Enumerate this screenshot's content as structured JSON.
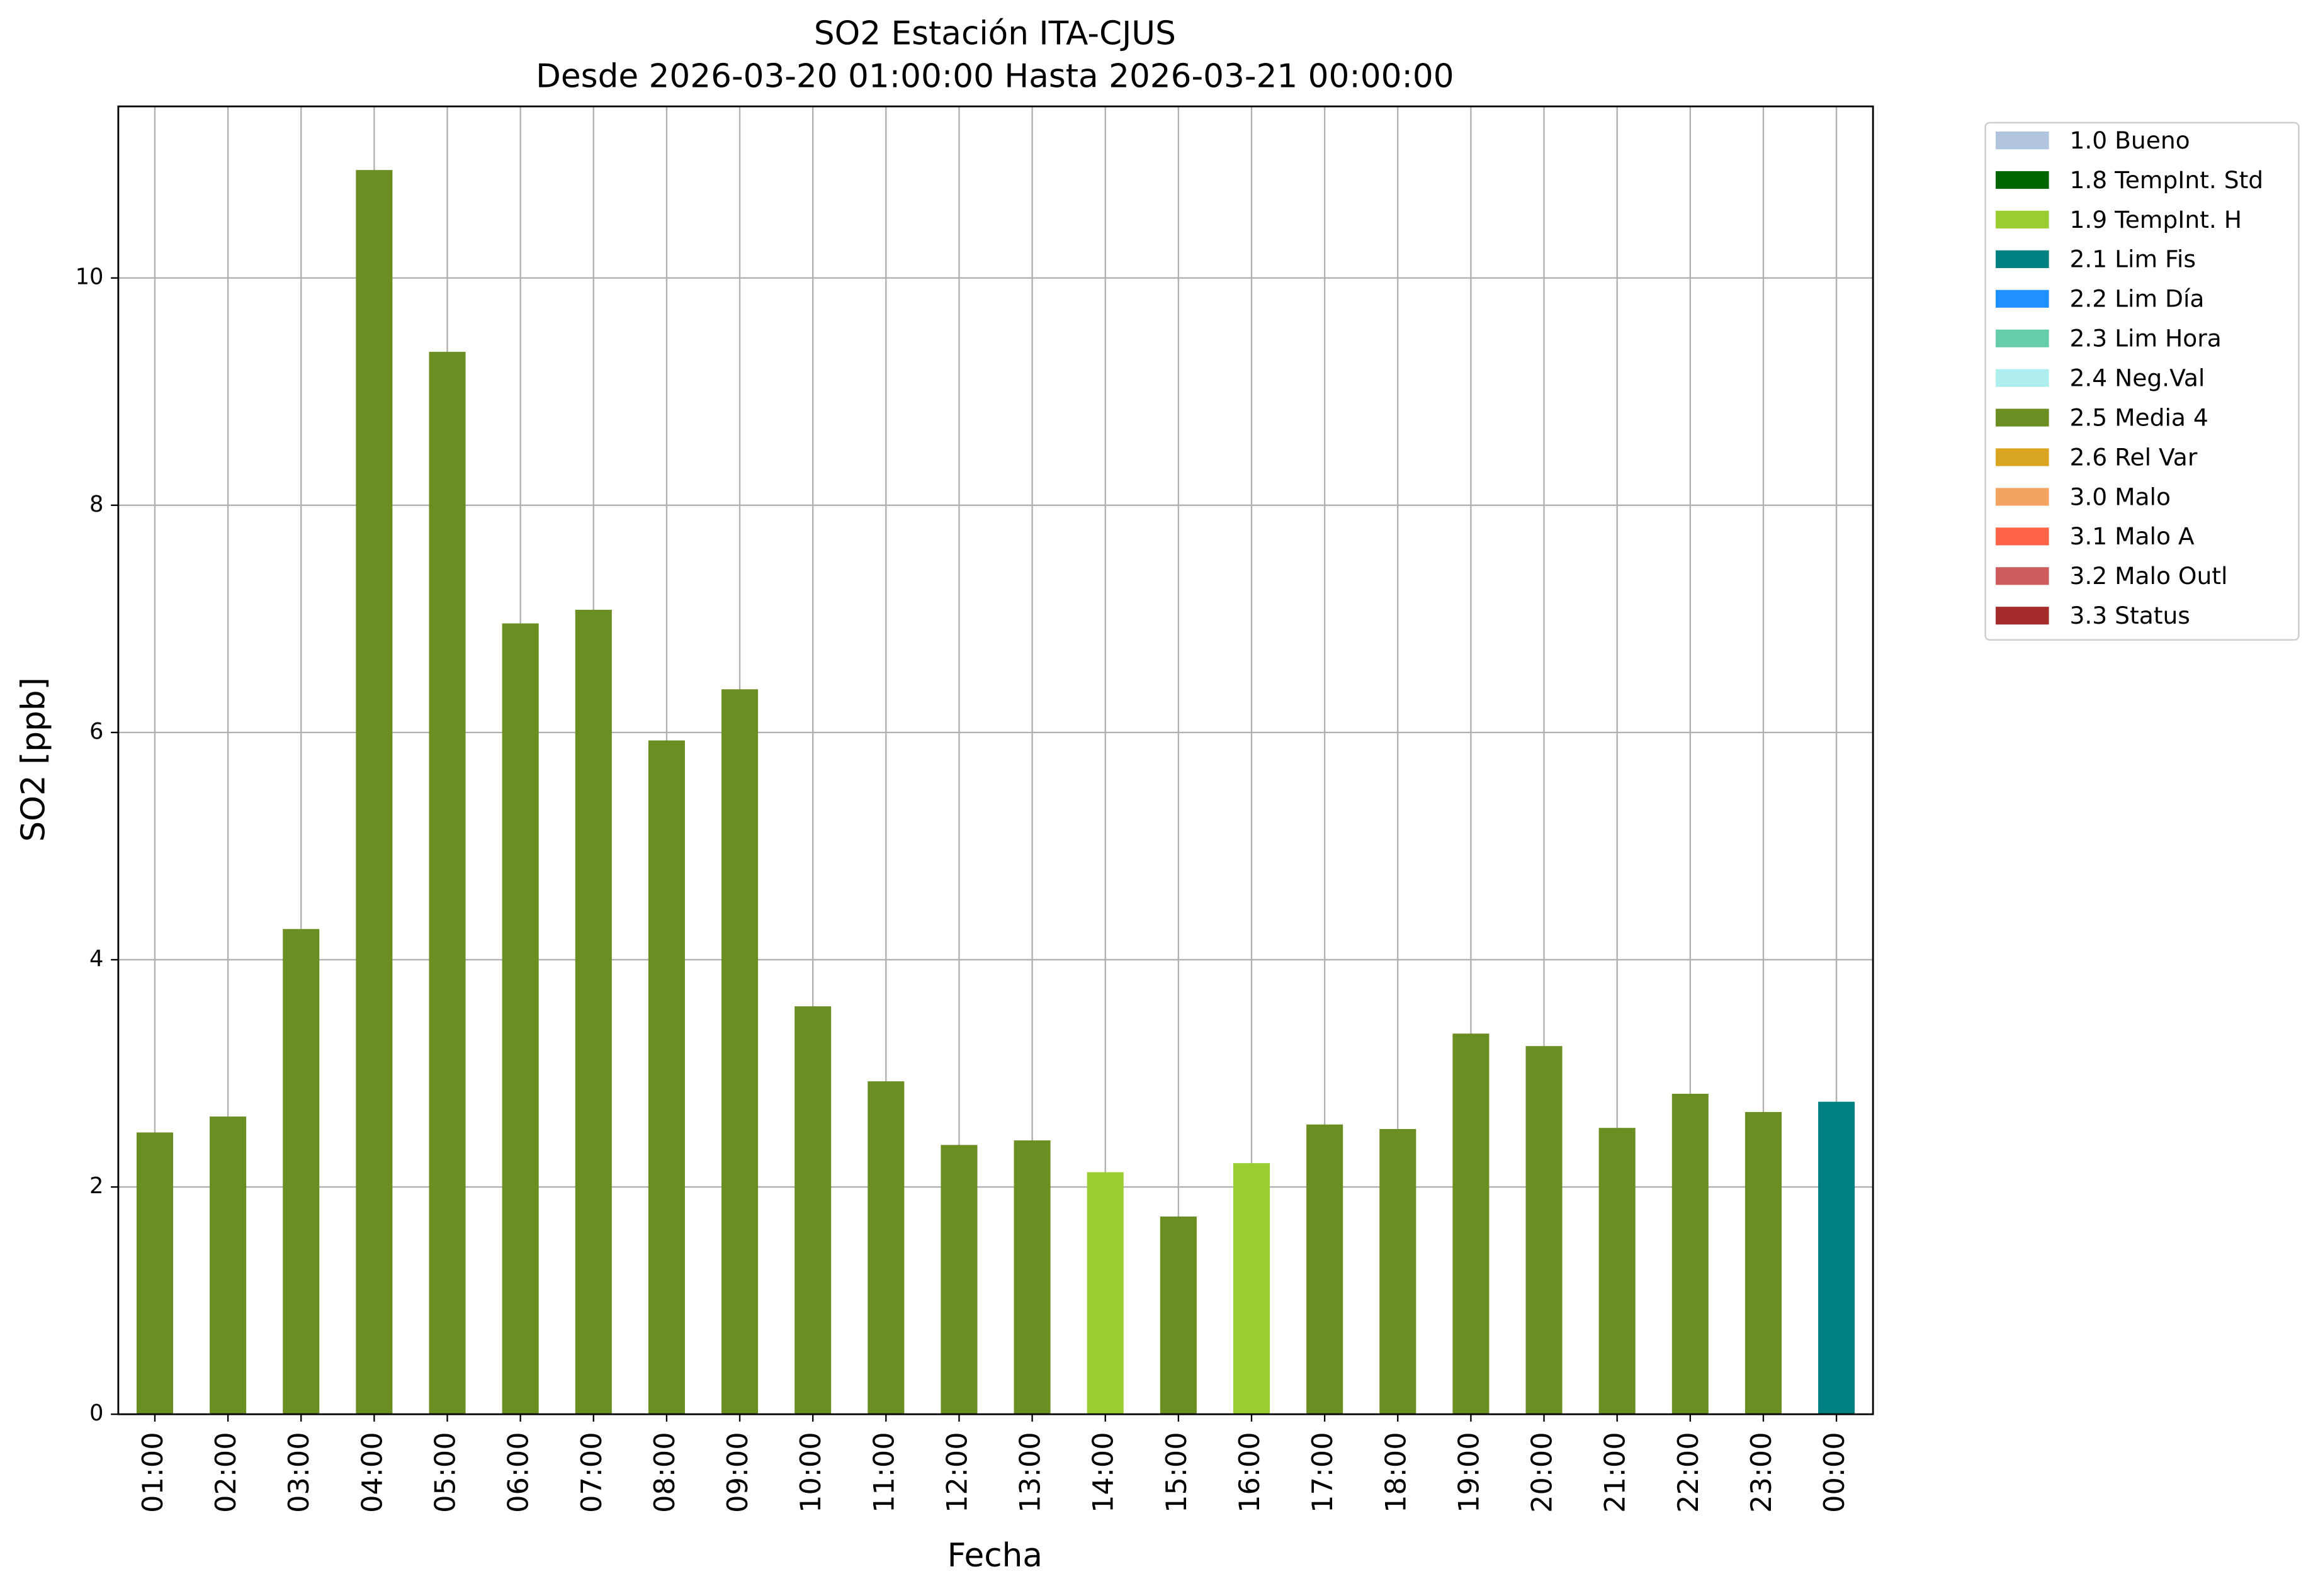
{
  "chart_data": {
    "type": "bar",
    "title": "SO2 Estación ITA-CJUS",
    "subtitle": "Desde 2026-03-20 01:00:00 Hasta 2026-03-21 00:00:00",
    "x_label": "Fecha",
    "y_label": "SO2 [ppb]",
    "categories": [
      "01:00",
      "02:00",
      "03:00",
      "04:00",
      "05:00",
      "06:00",
      "07:00",
      "08:00",
      "09:00",
      "10:00",
      "11:00",
      "12:00",
      "13:00",
      "14:00",
      "15:00",
      "16:00",
      "17:00",
      "18:00",
      "19:00",
      "20:00",
      "21:00",
      "22:00",
      "23:00",
      "00:00"
    ],
    "values": [
      2.48,
      2.62,
      4.27,
      10.95,
      9.35,
      6.96,
      7.08,
      5.93,
      6.38,
      3.59,
      2.93,
      2.37,
      2.41,
      2.13,
      1.74,
      2.21,
      2.55,
      2.51,
      3.35,
      3.24,
      2.52,
      2.82,
      2.66,
      2.75
    ],
    "colors": [
      "#6b8e23",
      "#6b8e23",
      "#6b8e23",
      "#6b8e23",
      "#6b8e23",
      "#6b8e23",
      "#6b8e23",
      "#6b8e23",
      "#6b8e23",
      "#6b8e23",
      "#6b8e23",
      "#6b8e23",
      "#6b8e23",
      "#9acd32",
      "#6b8e23",
      "#9acd32",
      "#6b8e23",
      "#6b8e23",
      "#6b8e23",
      "#6b8e23",
      "#6b8e23",
      "#6b8e23",
      "#6b8e23",
      "#008080"
    ],
    "ylim": [
      0,
      11.51
    ],
    "yticks": [
      0,
      2,
      4,
      6,
      8,
      10
    ],
    "grid": true,
    "legend_position": "outside-upper-right",
    "legend": [
      {
        "name": "1.0 Bueno",
        "color": "#b0c4de"
      },
      {
        "name": "1.8 TempInt. Std",
        "color": "#006400"
      },
      {
        "name": "1.9 TempInt. H",
        "color": "#9acd32"
      },
      {
        "name": "2.1 Lim Fis",
        "color": "#008080"
      },
      {
        "name": "2.2 Lim Día",
        "color": "#1e90ff"
      },
      {
        "name": "2.3 Lim Hora",
        "color": "#66cdaa"
      },
      {
        "name": "2.4 Neg.Val",
        "color": "#afeeee"
      },
      {
        "name": "2.5 Media 4",
        "color": "#6b8e23"
      },
      {
        "name": "2.6 Rel Var",
        "color": "#daa520"
      },
      {
        "name": "3.0 Malo",
        "color": "#f4a460"
      },
      {
        "name": "3.1 Malo A",
        "color": "#ff6347"
      },
      {
        "name": "3.2 Malo Outl",
        "color": "#cd5c5c"
      },
      {
        "name": "3.3 Status",
        "color": "#a52a2a"
      }
    ]
  }
}
